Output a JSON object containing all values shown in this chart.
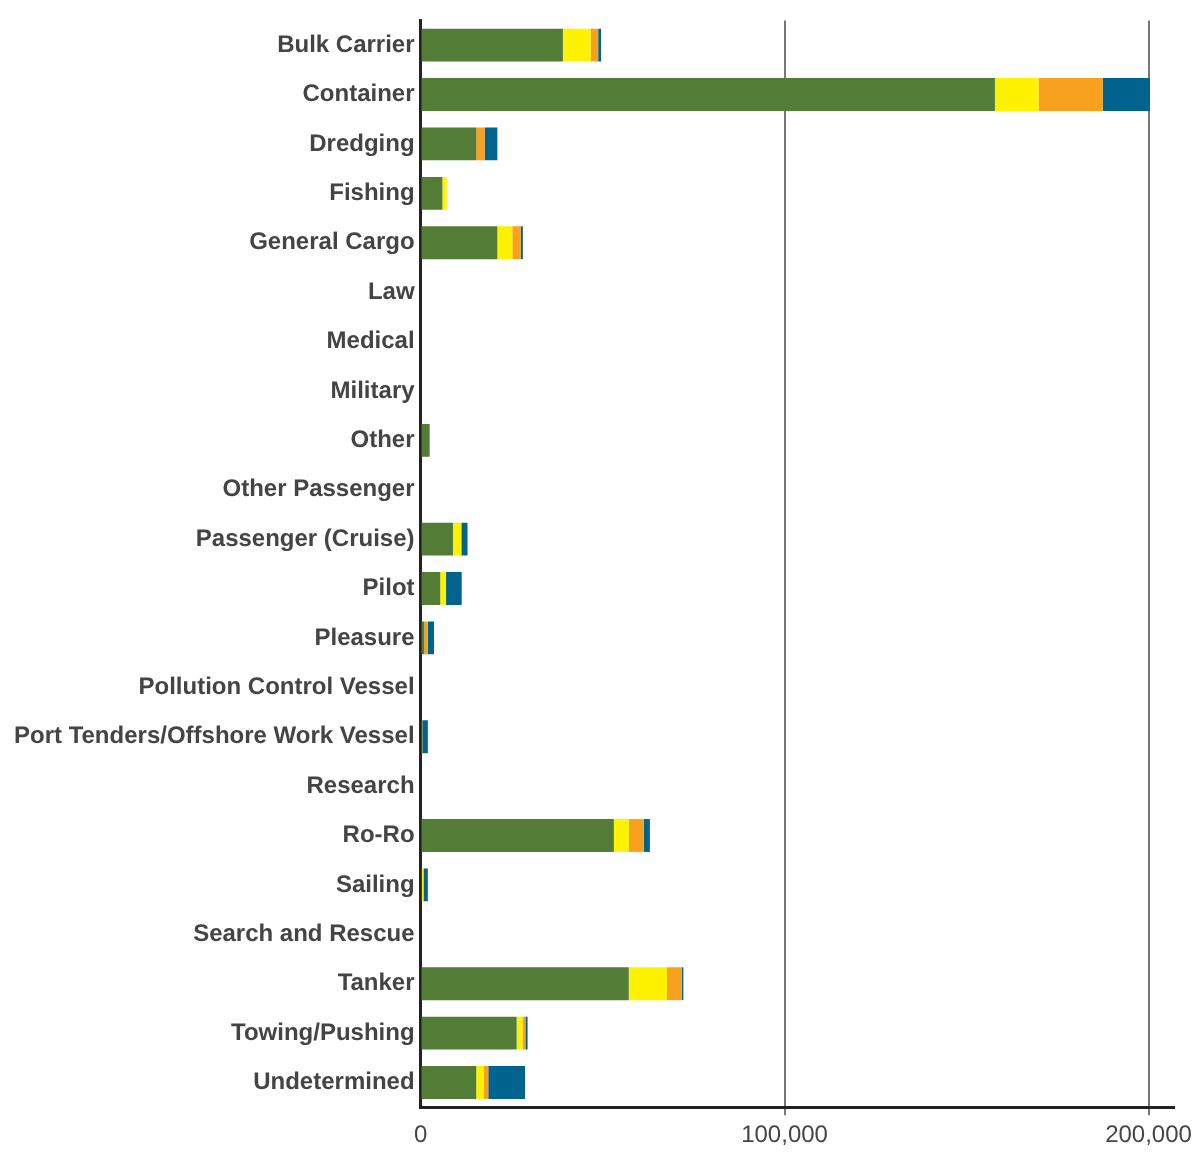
{
  "chart_data": {
    "type": "bar",
    "orientation": "horizontal",
    "stacked": true,
    "categories": [
      "Bulk Carrier",
      "Container",
      "Dredging",
      "Fishing",
      "General Cargo",
      "Law",
      "Medical",
      "Military",
      "Other",
      "Other Passenger",
      "Passenger (Cruise)",
      "Pilot",
      "Pleasure",
      "Pollution Control Vessel",
      "Port Tenders/Offshore Work Vessel",
      "Research",
      "Ro-Ro",
      "Sailing",
      "Search and Rescue",
      "Tanker",
      "Towing/Pushing",
      "Undetermined"
    ],
    "series": [
      {
        "color": "#537d36",
        "values": [
          39100,
          157800,
          15300,
          6000,
          21100,
          0,
          0,
          0,
          2500,
          0,
          8900,
          5400,
          1000,
          0,
          600,
          0,
          53100,
          400,
          0,
          57200,
          26400,
          15300
        ]
      },
      {
        "color": "#fff200",
        "values": [
          7600,
          12000,
          0,
          1200,
          4100,
          0,
          0,
          0,
          0,
          0,
          2300,
          1600,
          0,
          0,
          0,
          0,
          4100,
          400,
          0,
          10500,
          1600,
          2100
        ]
      },
      {
        "color": "#f7a11f",
        "values": [
          2100,
          17600,
          2300,
          0,
          2300,
          0,
          0,
          0,
          0,
          0,
          0,
          0,
          1000,
          0,
          0,
          0,
          4100,
          0,
          0,
          4100,
          800,
          1200
        ]
      },
      {
        "color": "#00648f",
        "values": [
          800,
          13000,
          3500,
          0,
          600,
          0,
          0,
          0,
          0,
          0,
          1700,
          4300,
          1700,
          0,
          1400,
          0,
          1700,
          1200,
          0,
          400,
          600,
          10100
        ]
      }
    ],
    "xlim": [
      0,
      207000
    ],
    "xticks": [
      0,
      {
        "value": 100000,
        "label": "100,000"
      },
      {
        "value": 200000,
        "label": "200,000"
      }
    ],
    "grid": "x",
    "legend": false
  }
}
